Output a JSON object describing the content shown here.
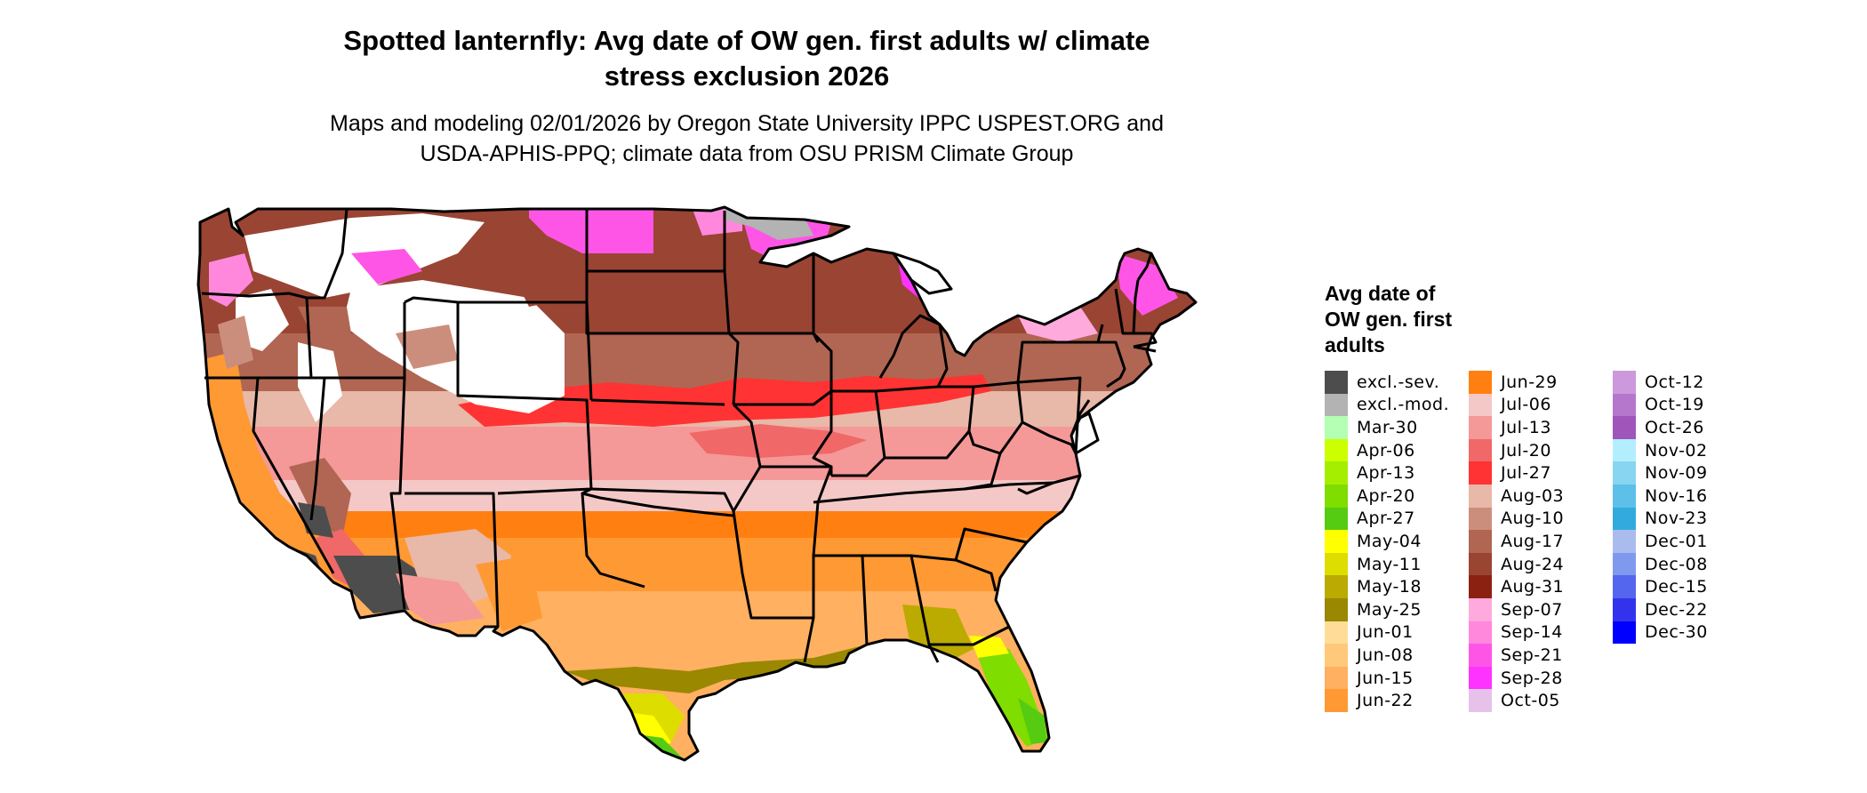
{
  "map": {
    "title_lines": [
      "Spotted lanternfly: Avg date of OW gen. first adults w/ climate",
      "stress exclusion 2026"
    ],
    "subtitle_lines": [
      "Maps and modeling 02/01/2026 by Oregon State University IPPC USPEST.ORG and",
      "USDA-APHIS-PPQ; climate data from OSU PRISM Climate Group"
    ],
    "region": "Contiguous United States"
  },
  "legend": {
    "title_lines": [
      "Avg date of",
      "OW gen. first",
      "adults"
    ],
    "columns": [
      [
        {
          "label": "excl.-sev.",
          "color": "#4d4d4d"
        },
        {
          "label": "excl.-mod.",
          "color": "#b3b3b3"
        },
        {
          "label": "Mar-30",
          "color": "#b3ffb3"
        },
        {
          "label": "Apr-06",
          "color": "#ccff00"
        },
        {
          "label": "Apr-13",
          "color": "#a6ee00"
        },
        {
          "label": "Apr-20",
          "color": "#7fdd00"
        },
        {
          "label": "Apr-27",
          "color": "#55cc11"
        },
        {
          "label": "May-04",
          "color": "#ffff00"
        },
        {
          "label": "May-11",
          "color": "#dddd00"
        },
        {
          "label": "May-18",
          "color": "#bbaa00"
        },
        {
          "label": "May-25",
          "color": "#998800"
        },
        {
          "label": "Jun-01",
          "color": "#ffdd99"
        },
        {
          "label": "Jun-08",
          "color": "#ffc87a"
        },
        {
          "label": "Jun-15",
          "color": "#ffb060"
        },
        {
          "label": "Jun-22",
          "color": "#ff9933"
        }
      ],
      [
        {
          "label": "Jun-29",
          "color": "#ff8011"
        },
        {
          "label": "Jul-06",
          "color": "#f5c8c8"
        },
        {
          "label": "Jul-13",
          "color": "#f59898"
        },
        {
          "label": "Jul-20",
          "color": "#f06868"
        },
        {
          "label": "Jul-27",
          "color": "#ff3333"
        },
        {
          "label": "Aug-03",
          "color": "#e8b8a8"
        },
        {
          "label": "Aug-10",
          "color": "#cc8e7c"
        },
        {
          "label": "Aug-17",
          "color": "#b06652"
        },
        {
          "label": "Aug-24",
          "color": "#9a4433"
        },
        {
          "label": "Aug-31",
          "color": "#8b2211"
        },
        {
          "label": "Sep-07",
          "color": "#ffaadd"
        },
        {
          "label": "Sep-14",
          "color": "#ff88dd"
        },
        {
          "label": "Sep-21",
          "color": "#ff55e6"
        },
        {
          "label": "Sep-28",
          "color": "#ff33ff"
        },
        {
          "label": "Oct-05",
          "color": "#e6c2ea"
        }
      ],
      [
        {
          "label": "Oct-12",
          "color": "#cc99dd"
        },
        {
          "label": "Oct-19",
          "color": "#b577cc"
        },
        {
          "label": "Oct-26",
          "color": "#a055bb"
        },
        {
          "label": "Nov-02",
          "color": "#b3eeff"
        },
        {
          "label": "Nov-09",
          "color": "#88d5f2"
        },
        {
          "label": "Nov-16",
          "color": "#5cc0e8"
        },
        {
          "label": "Nov-23",
          "color": "#33aadd"
        },
        {
          "label": "Dec-01",
          "color": "#aabbee"
        },
        {
          "label": "Dec-08",
          "color": "#7f99ee"
        },
        {
          "label": "Dec-15",
          "color": "#5566ee"
        },
        {
          "label": "Dec-22",
          "color": "#3333ee"
        },
        {
          "label": "Dec-30",
          "color": "#0000ff"
        }
      ]
    ]
  }
}
